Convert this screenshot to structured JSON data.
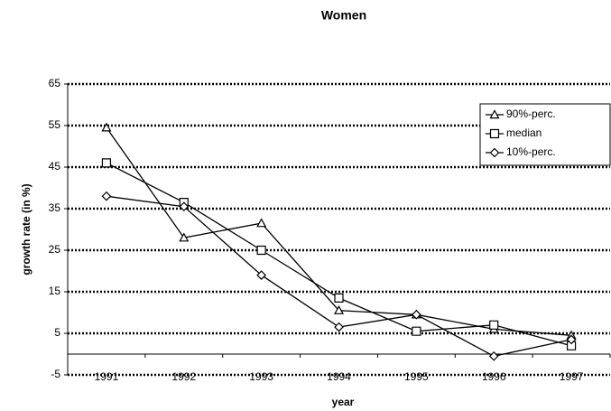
{
  "chart_data": {
    "type": "line",
    "title": "Women",
    "x_label": "year",
    "y_label": "growth rate (in %)",
    "categories": [
      "1991",
      "1992",
      "1993",
      "1994",
      "1995",
      "1996",
      "1997"
    ],
    "series": [
      {
        "name": "90%-perc.",
        "color": "#000000",
        "marker": "triangle",
        "values": [
          54.5,
          28,
          31.5,
          10.5,
          9.5,
          6,
          4.5
        ]
      },
      {
        "name": "median",
        "color": "#000000",
        "marker": "square",
        "values": [
          46,
          36.5,
          25,
          13.5,
          5.5,
          7,
          2
        ]
      },
      {
        "name": "10%-perc.",
        "color": "#000000",
        "marker": "diamond",
        "values": [
          38,
          35.5,
          19,
          6.5,
          9.5,
          -0.5,
          3.5
        ]
      }
    ],
    "ylim": [
      -5,
      65
    ],
    "yticks": [
      -5,
      5,
      15,
      25,
      35,
      45,
      55,
      65
    ],
    "grid": true,
    "legend": "top-right"
  }
}
